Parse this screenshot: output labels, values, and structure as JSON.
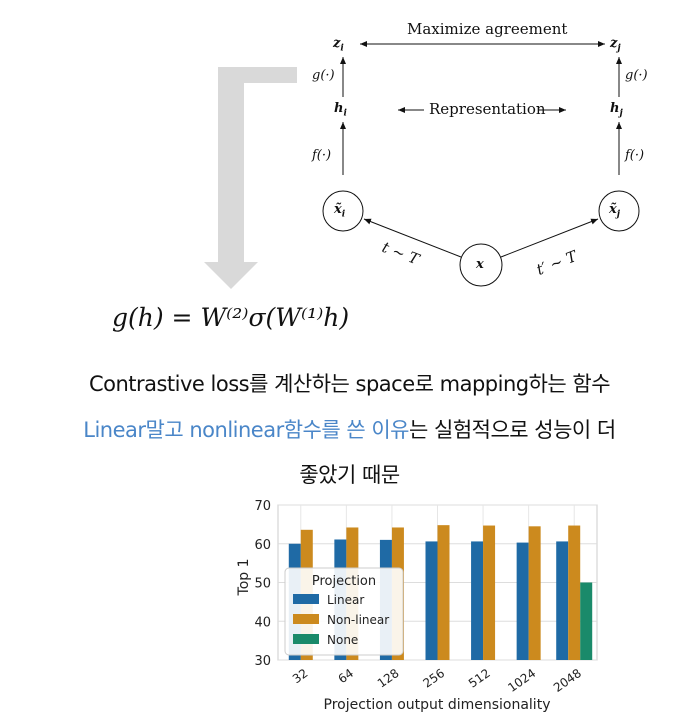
{
  "diagram": {
    "top_label": "Maximize agreement",
    "z_i": "z",
    "z_i_sub": "i",
    "z_j": "z",
    "z_j_sub": "j",
    "g_left": "g(·)",
    "g_right": "g(·)",
    "h_i": "h",
    "h_i_sub": "i",
    "h_j": "h",
    "h_j_sub": "j",
    "repr_label": "Representation",
    "f_left": "f(·)",
    "f_right": "f(·)",
    "x_i": "x̃",
    "x_i_sub": "i",
    "x_j": "x̃",
    "x_j_sub": "j",
    "x": "x",
    "t_left": "t ~ T",
    "t_right": "t′ ~ T"
  },
  "formula": "g(h) = W⁽²⁾σ(W⁽¹⁾h)",
  "text": {
    "line1": "Contrastive loss를 계산하는 space로 mapping하는 함수",
    "line2_blue": "Linear말고 nonlinear함수를 쓴 이유",
    "line2_rest": "는 실험적으로 성능이 더",
    "line3": "좋았기 때문"
  },
  "colors": {
    "accent_blue": "#4a86c8",
    "arrow_gray": "#d9d9d9",
    "linear": "#1f6aa5",
    "nonlinear": "#cc8a1e",
    "none": "#1a8a6a"
  },
  "chart_data": {
    "type": "bar",
    "title": "",
    "xlabel": "Projection output dimensionality",
    "ylabel": "Top 1",
    "ylim": [
      30,
      70
    ],
    "yticks": [
      30,
      40,
      50,
      60,
      70
    ],
    "categories": [
      "32",
      "64",
      "128",
      "256",
      "512",
      "1024",
      "2048"
    ],
    "grid": true,
    "legend": {
      "title": "Projection",
      "placement": "lower-left"
    },
    "series": [
      {
        "name": "Linear",
        "color": "#1f6aa5",
        "values": [
          60.0,
          61.1,
          61.0,
          60.6,
          60.6,
          60.3,
          60.6
        ]
      },
      {
        "name": "Non-linear",
        "color": "#cc8a1e",
        "values": [
          63.6,
          64.2,
          64.2,
          64.8,
          64.7,
          64.5,
          64.7
        ]
      },
      {
        "name": "None",
        "color": "#1a8a6a",
        "values": [
          null,
          null,
          null,
          null,
          null,
          null,
          50.0
        ]
      }
    ]
  }
}
